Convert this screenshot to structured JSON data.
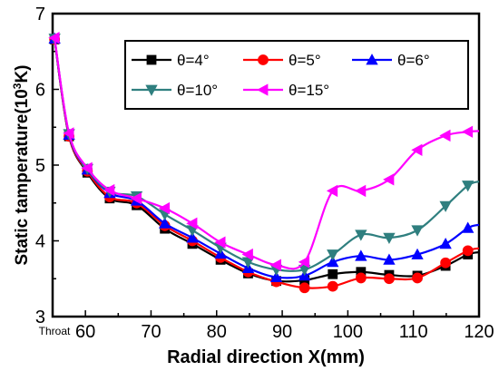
{
  "chart_data": {
    "type": "line",
    "xlabel": "Radial direction X(mm)",
    "ylabel_main": "Static tamperature(10",
    "ylabel_sup": "3",
    "ylabel_end": "K)",
    "xlim": [
      55,
      120
    ],
    "ylim": [
      3,
      7
    ],
    "xticks": [
      {
        "value": 55,
        "label": "Throat"
      },
      {
        "value": 60,
        "label": "60"
      },
      {
        "value": 70,
        "label": "70"
      },
      {
        "value": 80,
        "label": "80"
      },
      {
        "value": 90,
        "label": "90"
      },
      {
        "value": 100,
        "label": "100"
      },
      {
        "value": 110,
        "label": "110"
      },
      {
        "value": 120,
        "label": "120"
      }
    ],
    "yticks": [
      {
        "value": 3,
        "label": "3"
      },
      {
        "value": 4,
        "label": "4"
      },
      {
        "value": 5,
        "label": "5"
      },
      {
        "value": 6,
        "label": "6"
      },
      {
        "value": 7,
        "label": "7"
      }
    ],
    "x": [
      55.3,
      57.5,
      60.3,
      63.7,
      67.8,
      72.1,
      76.3,
      80.6,
      84.8,
      89.1,
      93.4,
      97.7,
      102.0,
      106.3,
      110.6,
      114.9,
      118.3
    ],
    "series": [
      {
        "name": "θ=4°",
        "color": "#000000",
        "marker": "square",
        "values": [
          6.66,
          5.38,
          4.9,
          4.56,
          4.47,
          4.16,
          3.96,
          3.75,
          3.57,
          3.47,
          3.48,
          3.56,
          3.59,
          3.55,
          3.54,
          3.67,
          3.82
        ]
      },
      {
        "name": "θ=5°",
        "color": "#ff0000",
        "marker": "circle",
        "values": [
          6.66,
          5.38,
          4.92,
          4.58,
          4.5,
          4.2,
          4.0,
          3.78,
          3.59,
          3.46,
          3.38,
          3.4,
          3.51,
          3.5,
          3.51,
          3.71,
          3.87
        ]
      },
      {
        "name": "θ=6°",
        "color": "#0000ff",
        "marker": "triangle-up",
        "values": [
          6.67,
          5.4,
          4.94,
          4.63,
          4.53,
          4.23,
          4.04,
          3.83,
          3.64,
          3.52,
          3.54,
          3.72,
          3.8,
          3.75,
          3.82,
          3.96,
          4.17
        ]
      },
      {
        "name": "θ=10°",
        "color": "#2f7f7f",
        "marker": "triangle-down",
        "values": [
          6.67,
          5.41,
          4.95,
          4.65,
          4.59,
          4.35,
          4.14,
          3.91,
          3.72,
          3.62,
          3.62,
          3.82,
          4.08,
          4.04,
          4.14,
          4.46,
          4.73
        ]
      },
      {
        "name": "θ=15°",
        "color": "#ff00ff",
        "marker": "triangle-left",
        "values": [
          6.68,
          5.42,
          4.96,
          4.67,
          4.56,
          4.43,
          4.23,
          3.98,
          3.82,
          3.68,
          3.72,
          4.66,
          4.66,
          4.81,
          5.2,
          5.39,
          5.44
        ]
      }
    ],
    "legend_position": "top-right",
    "grid": false
  }
}
